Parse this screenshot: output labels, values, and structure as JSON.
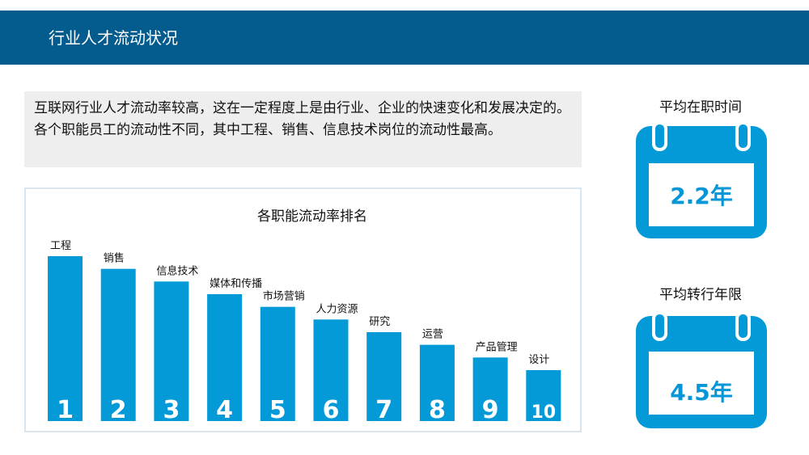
{
  "header": {
    "title": "行业人才流动状况"
  },
  "intro": {
    "text": "互联网行业人才流动率较高，这在一定程度上是由行业、企业的快速变化和发展决定的。各个职能员工的流动性不同，其中工程、销售、信息技术岗位的流动性最高。"
  },
  "chart_data": {
    "type": "bar",
    "title": "各职能流动率排名",
    "categories": [
      "工程",
      "销售",
      "信息技术",
      "媒体和传播",
      "市场营销",
      "人力资源",
      "研究",
      "运营",
      "产品管理",
      "设计"
    ],
    "values": [
      1,
      2,
      3,
      4,
      5,
      6,
      7,
      8,
      9,
      10
    ],
    "bar_labels": [
      "1",
      "2",
      "3",
      "4",
      "5",
      "6",
      "7",
      "8",
      "9",
      "10"
    ],
    "bar_color": "#049ad8"
  },
  "stats": [
    {
      "title": "平均在职时间",
      "value": "2.2年"
    },
    {
      "title": "平均转行年限",
      "value": "4.5年"
    }
  ],
  "colors": {
    "header": "#035b8e",
    "accent": "#049ad8",
    "value_text": "#0496d6"
  }
}
